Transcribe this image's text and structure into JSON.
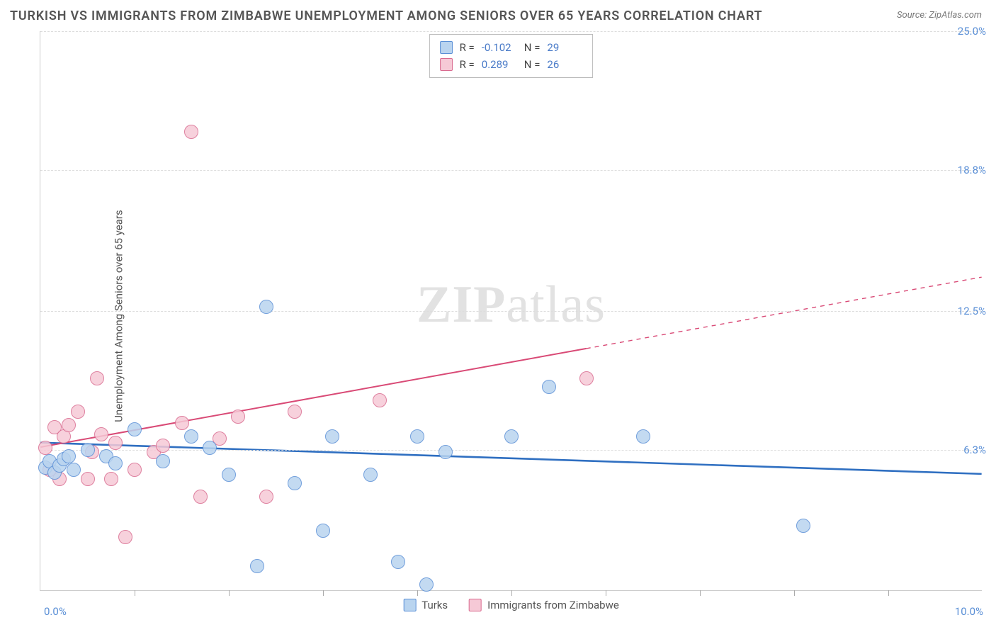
{
  "title": "TURKISH VS IMMIGRANTS FROM ZIMBABWE UNEMPLOYMENT AMONG SENIORS OVER 65 YEARS CORRELATION CHART",
  "source": "Source: ZipAtlas.com",
  "y_axis_label": "Unemployment Among Seniors over 65 years",
  "watermark_bold": "ZIP",
  "watermark_light": "atlas",
  "chart": {
    "type": "scatter-correlation",
    "xlim": [
      0.0,
      10.0
    ],
    "ylim": [
      0.0,
      25.0
    ],
    "y_ticks": [
      6.3,
      12.5,
      18.8,
      25.0
    ],
    "y_tick_labels": [
      "6.3%",
      "12.5%",
      "18.8%",
      "25.0%"
    ],
    "x_tick_labels": {
      "left": "0.0%",
      "right": "10.0%"
    },
    "x_minor_ticks": [
      1.0,
      2.0,
      3.0,
      4.0,
      5.0,
      6.0,
      7.0,
      8.0,
      9.0
    ],
    "grid_color": "#dddddd",
    "background_color": "#ffffff",
    "point_radius": 10,
    "point_border_width": 1.2,
    "series": [
      {
        "name": "Turks",
        "fill": "#b9d4ef",
        "stroke": "#5a8fd6",
        "R": "-0.102",
        "N": "29",
        "trend": {
          "color": "#2f6fc1",
          "width": 2.6,
          "y_at_x0": 6.6,
          "y_at_xmax": 5.2,
          "solid_until_x": 10.0
        },
        "points": [
          [
            0.05,
            5.5
          ],
          [
            0.1,
            5.8
          ],
          [
            0.15,
            5.3
          ],
          [
            0.2,
            5.6
          ],
          [
            0.25,
            5.9
          ],
          [
            0.3,
            6.0
          ],
          [
            0.35,
            5.4
          ],
          [
            0.5,
            6.3
          ],
          [
            0.7,
            6.0
          ],
          [
            0.8,
            5.7
          ],
          [
            1.0,
            7.2
          ],
          [
            1.3,
            5.8
          ],
          [
            1.6,
            6.9
          ],
          [
            1.8,
            6.4
          ],
          [
            2.0,
            5.2
          ],
          [
            2.3,
            1.1
          ],
          [
            2.4,
            12.7
          ],
          [
            2.7,
            4.8
          ],
          [
            3.0,
            2.7
          ],
          [
            3.1,
            6.9
          ],
          [
            3.5,
            5.2
          ],
          [
            3.8,
            1.3
          ],
          [
            4.0,
            6.9
          ],
          [
            4.1,
            0.3
          ],
          [
            4.3,
            6.2
          ],
          [
            5.0,
            6.9
          ],
          [
            5.4,
            9.1
          ],
          [
            6.4,
            6.9
          ],
          [
            8.1,
            2.9
          ]
        ]
      },
      {
        "name": "Immigrants from Zimbabwe",
        "fill": "#f6c9d6",
        "stroke": "#d96a8f",
        "R": "0.289",
        "N": "26",
        "trend": {
          "color": "#d94a76",
          "width": 2.0,
          "y_at_x0": 6.4,
          "y_at_xmax": 14.0,
          "solid_until_x": 5.8
        },
        "points": [
          [
            0.05,
            6.4
          ],
          [
            0.1,
            5.4
          ],
          [
            0.15,
            7.3
          ],
          [
            0.2,
            5.0
          ],
          [
            0.25,
            6.9
          ],
          [
            0.3,
            7.4
          ],
          [
            0.4,
            8.0
          ],
          [
            0.5,
            5.0
          ],
          [
            0.55,
            6.2
          ],
          [
            0.6,
            9.5
          ],
          [
            0.65,
            7.0
          ],
          [
            0.75,
            5.0
          ],
          [
            0.8,
            6.6
          ],
          [
            0.9,
            2.4
          ],
          [
            1.0,
            5.4
          ],
          [
            1.2,
            6.2
          ],
          [
            1.3,
            6.5
          ],
          [
            1.5,
            7.5
          ],
          [
            1.6,
            20.5
          ],
          [
            1.7,
            4.2
          ],
          [
            1.9,
            6.8
          ],
          [
            2.1,
            7.8
          ],
          [
            2.4,
            4.2
          ],
          [
            2.7,
            8.0
          ],
          [
            3.6,
            8.5
          ],
          [
            5.8,
            9.5
          ]
        ]
      }
    ]
  },
  "stats_legend": {
    "rows": [
      {
        "R_label": "R =",
        "N_label": "N ="
      },
      {
        "R_label": "R =",
        "N_label": "N ="
      }
    ]
  },
  "bottom_legend": {
    "items": [
      "Turks",
      "Immigrants from Zimbabwe"
    ]
  }
}
